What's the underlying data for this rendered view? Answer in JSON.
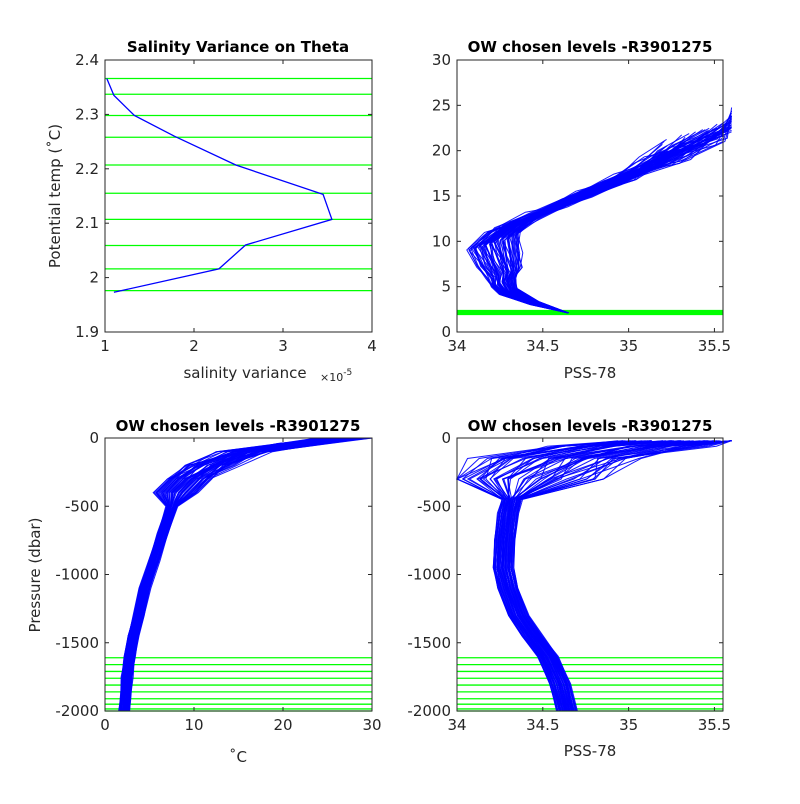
{
  "chart_data": [
    {
      "type": "line",
      "title": "Salinity Variance on Theta",
      "xlabel": "salinity variance",
      "x_exponent_label": "×10",
      "x_exponent_power": "-5",
      "ylabel": "Potential temp (˚C)",
      "xlim": [
        1,
        4
      ],
      "ylim": [
        1.9,
        2.4
      ],
      "xticks": [
        "1",
        "2",
        "3",
        "4"
      ],
      "yticks": [
        "1.9",
        "2",
        "2.1",
        "2.2",
        "2.3",
        "2.4"
      ],
      "xtick_values": [
        1,
        2,
        3,
        4
      ],
      "ytick_values": [
        1.9,
        2.0,
        2.1,
        2.2,
        2.3,
        2.4
      ],
      "series": [
        {
          "x": [
            1.02,
            1.1,
            1.33,
            1.78,
            2.47,
            3.45,
            3.55,
            2.58,
            2.28,
            1.1
          ],
          "y": [
            2.366,
            2.335,
            2.298,
            2.26,
            2.207,
            2.153,
            2.107,
            2.06,
            2.016,
            1.973
          ],
          "color": "#0000ff"
        }
      ],
      "levels": [
        2.366,
        2.337,
        2.298,
        2.258,
        2.207,
        2.155,
        2.107,
        2.059,
        2.016,
        1.976
      ],
      "level_color": "#00ff00"
    },
    {
      "type": "line",
      "title": "OW chosen levels -R3901275",
      "xlabel": "PSS-78",
      "ylabel": "",
      "xlim": [
        34,
        35.55
      ],
      "ylim": [
        0,
        30
      ],
      "xticks": [
        "34",
        "34.5",
        "35",
        "35.5"
      ],
      "yticks": [
        "0",
        "5",
        "10",
        "15",
        "20",
        "25",
        "30"
      ],
      "xtick_values": [
        34,
        34.5,
        35,
        35.5
      ],
      "ytick_values": [
        0,
        5,
        10,
        15,
        20,
        25,
        30
      ],
      "series": [
        {
          "description_ref": "theta-salinity profiles",
          "x": [
            34.65,
            34.45,
            34.3,
            34.27,
            34.28,
            34.25,
            34.22,
            34.35,
            34.6,
            34.85,
            35.1,
            35.3,
            35.5
          ],
          "y": [
            2.1,
            3.2,
            4.5,
            5.5,
            6.5,
            8.0,
            10.0,
            12.0,
            14.0,
            16.0,
            18.0,
            20.0,
            22.0
          ],
          "color": "#0000ff"
        }
      ],
      "levels": [
        2.0,
        2.1,
        2.2,
        2.3
      ],
      "level_color": "#00ff00"
    },
    {
      "type": "line",
      "title": "OW chosen levels -R3901275",
      "xlabel": "˚C",
      "ylabel": "Pressure (dbar)",
      "xlim": [
        0,
        30
      ],
      "ylim": [
        -2000,
        0
      ],
      "xticks": [
        "0",
        "10",
        "20",
        "30"
      ],
      "yticks": [
        "-2000",
        "-1500",
        "-1000",
        "-500",
        "0"
      ],
      "xtick_values": [
        0,
        10,
        20,
        30
      ],
      "ytick_values": [
        -2000,
        -1500,
        -1000,
        -500,
        0
      ],
      "series": [
        {
          "x": [
            27,
            22,
            16,
            12,
            9.5,
            8,
            7.5,
            6.5,
            5.5,
            4.5,
            3.8,
            3.2,
            2.8,
            2.5,
            2.3,
            2.2
          ],
          "y": [
            0,
            -40,
            -100,
            -200,
            -300,
            -400,
            -500,
            -700,
            -900,
            -1100,
            -1300,
            -1450,
            -1600,
            -1750,
            -1900,
            -2000
          ],
          "color": "#0000ff"
        }
      ],
      "levels": [
        -1610,
        -1660,
        -1710,
        -1760,
        -1810,
        -1860,
        -1910,
        -1950,
        -1985,
        -2000
      ],
      "level_color": "#00ff00"
    },
    {
      "type": "line",
      "title": "OW chosen levels -R3901275",
      "xlabel": "PSS-78",
      "ylabel": "",
      "xlim": [
        34,
        35.55
      ],
      "ylim": [
        -2000,
        0
      ],
      "xticks": [
        "34",
        "34.5",
        "35",
        "35.5"
      ],
      "yticks": [
        "-2000",
        "-1500",
        "-1000",
        "-500",
        "0"
      ],
      "xtick_values": [
        34,
        34.5,
        35,
        35.5
      ],
      "ytick_values": [
        -2000,
        -1500,
        -1000,
        -500,
        0
      ],
      "series": [
        {
          "x": [
            35.4,
            35.0,
            34.6,
            34.4,
            34.32,
            34.3,
            34.28,
            34.27,
            34.3,
            34.36,
            34.44,
            34.53,
            34.6,
            34.64
          ],
          "y": [
            -20,
            -60,
            -150,
            -300,
            -450,
            -550,
            -750,
            -950,
            -1100,
            -1300,
            -1450,
            -1600,
            -1800,
            -2000
          ],
          "color": "#0000ff"
        }
      ],
      "levels": [
        -1610,
        -1660,
        -1710,
        -1760,
        -1810,
        -1860,
        -1910,
        -1950,
        -1985,
        -2000
      ],
      "level_color": "#00ff00"
    }
  ]
}
